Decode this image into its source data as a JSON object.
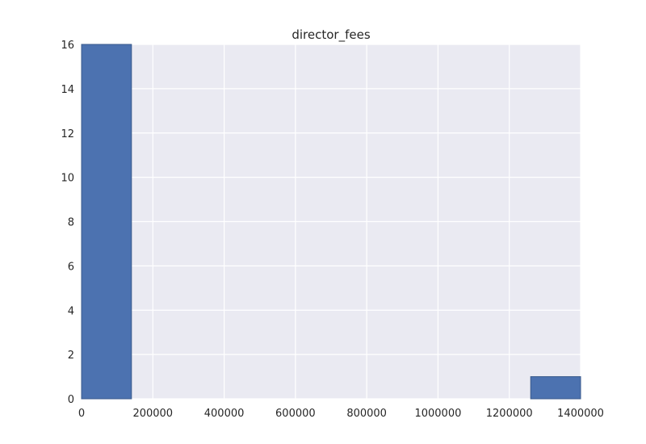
{
  "chart_data": {
    "type": "bar",
    "title": "director_fees",
    "xlabel": "",
    "ylabel": "",
    "xlim": [
      0,
      1400000
    ],
    "ylim": [
      0,
      16
    ],
    "grid": true,
    "bins": [
      {
        "x0": 0,
        "x1": 140000,
        "count": 16
      },
      {
        "x0": 140000,
        "x1": 280000,
        "count": 0
      },
      {
        "x0": 280000,
        "x1": 420000,
        "count": 0
      },
      {
        "x0": 420000,
        "x1": 560000,
        "count": 0
      },
      {
        "x0": 560000,
        "x1": 700000,
        "count": 0
      },
      {
        "x0": 700000,
        "x1": 840000,
        "count": 0
      },
      {
        "x0": 840000,
        "x1": 980000,
        "count": 0
      },
      {
        "x0": 980000,
        "x1": 1120000,
        "count": 0
      },
      {
        "x0": 1120000,
        "x1": 1260000,
        "count": 0
      },
      {
        "x0": 1260000,
        "x1": 1400000,
        "count": 1
      }
    ],
    "x_ticks": [
      "0",
      "200000",
      "400000",
      "600000",
      "800000",
      "1000000",
      "1200000",
      "1400000"
    ],
    "y_ticks": [
      "0",
      "2",
      "4",
      "6",
      "8",
      "10",
      "12",
      "14",
      "16"
    ],
    "colors": {
      "bar": "#4c72b0",
      "bar_edge": "#3a5a8c",
      "plot_bg": "#eaeaf2",
      "grid": "#ffffff",
      "text": "#262626"
    }
  }
}
